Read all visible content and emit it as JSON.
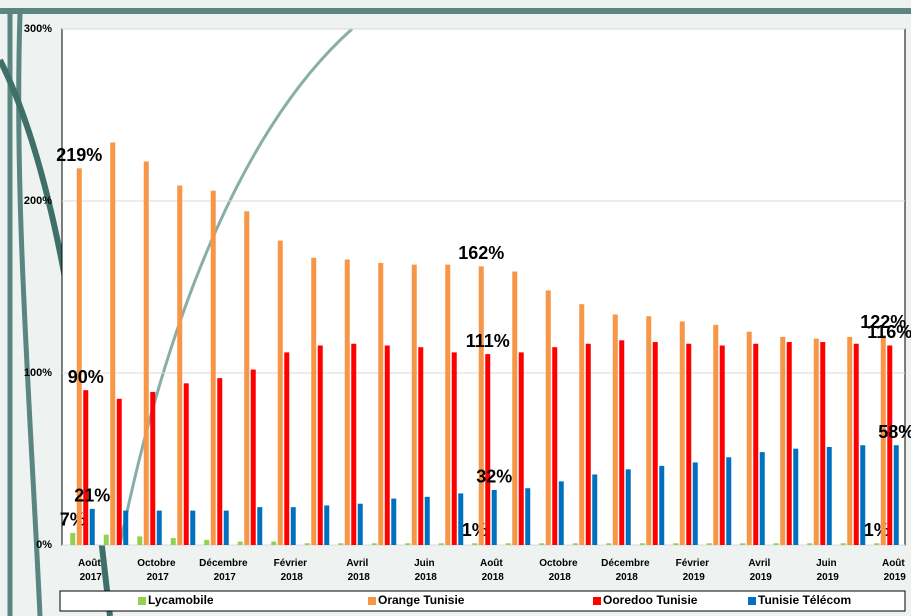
{
  "chart_data": {
    "type": "bar",
    "legend": "bottom",
    "grid": true,
    "categories": [
      "Août 2017",
      null,
      "Octobre 2017",
      null,
      "Décembre 2017",
      null,
      "Février 2018",
      null,
      "Avril 2018",
      null,
      "Juin 2018",
      null,
      "Août 2018",
      null,
      "Octobre 2018",
      null,
      "Décembre 2018",
      null,
      "Février 2019",
      null,
      "Avril 2019",
      null,
      "Juin 2019",
      null,
      "Août 2019"
    ],
    "ylim": [
      0,
      300
    ],
    "yticks": [
      {
        "value": 0,
        "label": "0%"
      },
      {
        "value": 100,
        "label": "100%"
      },
      {
        "value": 200,
        "label": "200%"
      },
      {
        "value": 300,
        "label": "300%"
      }
    ],
    "series": [
      {
        "name": "Lycamobile",
        "color": "#92d050",
        "values": [
          7,
          6,
          5,
          4,
          3,
          2,
          2,
          1,
          1,
          1,
          1,
          1,
          1,
          1,
          1,
          1,
          1,
          1,
          1,
          1,
          1,
          1,
          1,
          1,
          1
        ],
        "value_labels": [
          "7%",
          null,
          null,
          null,
          null,
          null,
          null,
          null,
          null,
          null,
          null,
          null,
          "1%",
          null,
          null,
          null,
          null,
          null,
          null,
          null,
          null,
          null,
          null,
          null,
          "1%"
        ]
      },
      {
        "name": "Orange Tunisie",
        "color": "#f79646",
        "values": [
          219,
          234,
          223,
          209,
          206,
          194,
          177,
          167,
          166,
          164,
          163,
          163,
          162,
          159,
          148,
          140,
          134,
          133,
          130,
          128,
          124,
          121,
          120,
          121,
          122
        ],
        "value_labels": [
          "219%",
          null,
          null,
          null,
          null,
          null,
          null,
          null,
          null,
          null,
          null,
          null,
          "162%",
          null,
          null,
          null,
          null,
          null,
          null,
          null,
          null,
          null,
          null,
          null,
          "122%"
        ]
      },
      {
        "name": "Ooredoo Tunisie",
        "color": "#ff0000",
        "values": [
          90,
          85,
          89,
          94,
          97,
          102,
          112,
          116,
          117,
          116,
          115,
          112,
          111,
          112,
          115,
          117,
          119,
          118,
          117,
          116,
          117,
          118,
          118,
          117,
          116
        ],
        "value_labels": [
          "90%",
          null,
          null,
          null,
          null,
          null,
          null,
          null,
          null,
          null,
          null,
          null,
          "111%",
          null,
          null,
          null,
          null,
          null,
          null,
          null,
          null,
          null,
          null,
          null,
          "116%"
        ]
      },
      {
        "name": "Tunisie Télécom",
        "color": "#0070c0",
        "values": [
          21,
          20,
          20,
          20,
          20,
          22,
          22,
          23,
          24,
          27,
          28,
          30,
          32,
          33,
          37,
          41,
          44,
          46,
          48,
          51,
          54,
          56,
          57,
          58,
          58
        ],
        "value_labels": [
          "21%",
          null,
          null,
          null,
          null,
          null,
          null,
          null,
          null,
          null,
          null,
          null,
          "32%",
          null,
          null,
          null,
          null,
          null,
          null,
          null,
          null,
          null,
          null,
          null,
          "58%"
        ]
      }
    ]
  }
}
